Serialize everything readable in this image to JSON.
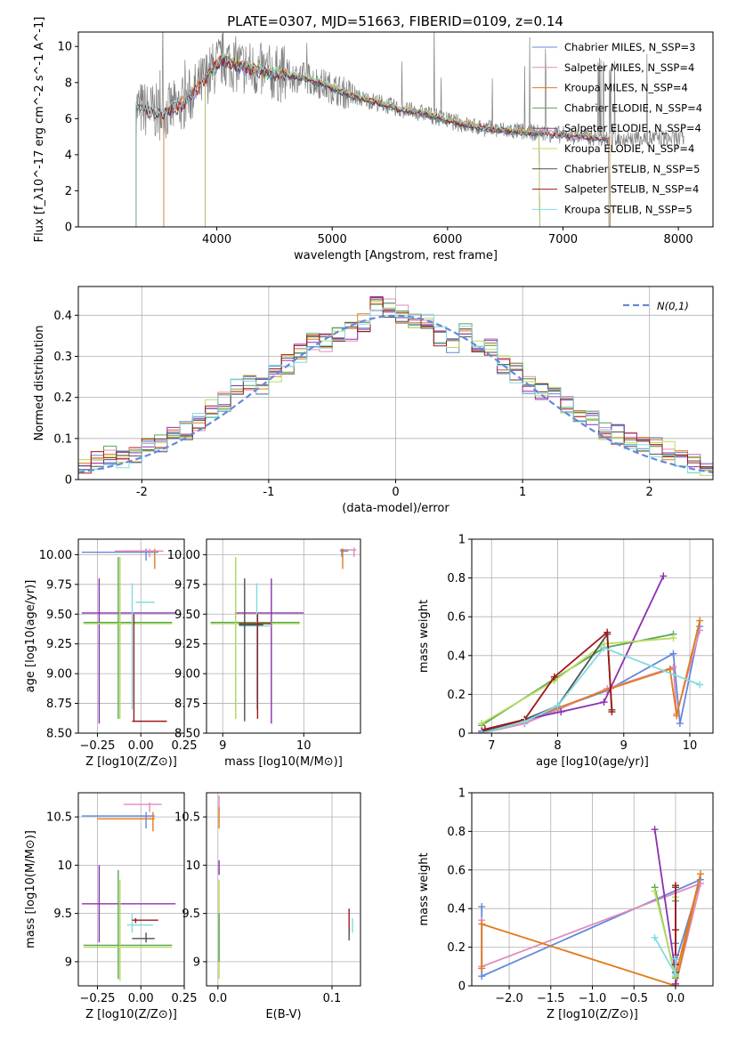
{
  "figure": {
    "title": "PLATE=0307, MJD=51663, FIBERID=0109, z=0.14"
  },
  "chart_data": [
    {
      "id": "spectrum",
      "type": "line",
      "title": "PLATE=0307, MJD=51663, FIBERID=0109, z=0.14",
      "xlabel": "wavelength [Angstrom, rest frame]",
      "ylabel": "Flux [f_λ10^-17 erg cm^-2 s^-1 A^-1]",
      "xlim": [
        2800,
        8300
      ],
      "ylim": [
        0,
        10.8
      ],
      "xticks": [
        4000,
        5000,
        6000,
        7000,
        8000
      ],
      "yticks": [
        0,
        2,
        4,
        6,
        8,
        10
      ],
      "grid": false,
      "legend_position": "right",
      "data_series": {
        "name": "",
        "color": "#808080",
        "x_range": [
          3300,
          8050
        ],
        "description": "noisy observed spectrum"
      },
      "continuum": {
        "x": [
          3300,
          3450,
          3550,
          3700,
          3850,
          3950,
          4050,
          4200,
          4400,
          4600,
          4800,
          5000,
          5200,
          5400,
          5600,
          5800,
          6000,
          6200,
          6400,
          6600,
          6800,
          7000,
          7200,
          7400
        ],
        "y": [
          6.6,
          6.4,
          6.3,
          6.8,
          7.8,
          8.6,
          9.3,
          8.9,
          8.6,
          8.4,
          8.2,
          7.7,
          7.2,
          6.9,
          6.5,
          6.3,
          5.9,
          5.6,
          5.4,
          5.3,
          5.2,
          5.1,
          5.0,
          4.9
        ]
      },
      "series": [
        {
          "name": "Chabrier MILES, N_SSP=3",
          "color": "#6488dc",
          "x_range": [
            3540,
            7410
          ]
        },
        {
          "name": "Salpeter MILES, N_SSP=4",
          "color": "#e08cbc",
          "x_range": [
            3540,
            7410
          ]
        },
        {
          "name": "Kroupa MILES, N_SSP=4",
          "color": "#e07c1c",
          "x_range": [
            3540,
            7410
          ]
        },
        {
          "name": "Chabrier ELODIE, N_SSP=4",
          "color": "#58a458",
          "x_range": [
            3900,
            6800
          ]
        },
        {
          "name": "Salpeter ELODIE, N_SSP=4",
          "color": "#8c30b0",
          "x_range": [
            3900,
            6800
          ]
        },
        {
          "name": "Kroupa ELODIE, N_SSP=4",
          "color": "#b8dc5c",
          "x_range": [
            3900,
            6800
          ]
        },
        {
          "name": "Chabrier STELIB, N_SSP=5",
          "color": "#505050",
          "x_range": [
            3300,
            7400
          ]
        },
        {
          "name": "Salpeter STELIB, N_SSP=4",
          "color": "#a01818",
          "x_range": [
            3300,
            7400
          ]
        },
        {
          "name": "Kroupa STELIB, N_SSP=5",
          "color": "#80dce0",
          "x_range": [
            3300,
            7400
          ]
        }
      ]
    },
    {
      "id": "residuals",
      "type": "line",
      "xlabel": "(data-model)/error",
      "ylabel": "Normed distribution",
      "xlim": [
        -2.5,
        2.5
      ],
      "ylim": [
        0,
        0.47
      ],
      "xticks": [
        -2,
        -1,
        0,
        1,
        2
      ],
      "yticks": [
        0.0,
        0.1,
        0.2,
        0.3,
        0.4
      ],
      "grid": true,
      "legend_position": "top-right",
      "legend": "N(0,1)",
      "bins": [
        -2.5,
        2.5,
        50
      ],
      "gaussian": {
        "name": "N(0,1)",
        "color": "#6488dc",
        "style": "dashed"
      },
      "hist_envelope_y": [
        0.03,
        0.045,
        0.06,
        0.05,
        0.06,
        0.08,
        0.09,
        0.11,
        0.12,
        0.14,
        0.17,
        0.19,
        0.22,
        0.23,
        0.23,
        0.26,
        0.28,
        0.31,
        0.34,
        0.33,
        0.35,
        0.36,
        0.38,
        0.43,
        0.42,
        0.4,
        0.38,
        0.39,
        0.35,
        0.33,
        0.36,
        0.33,
        0.32,
        0.28,
        0.26,
        0.23,
        0.21,
        0.2,
        0.18,
        0.16,
        0.15,
        0.12,
        0.11,
        0.1,
        0.09,
        0.08,
        0.07,
        0.05,
        0.04,
        0.02
      ]
    },
    {
      "id": "age_vs_Z",
      "type": "scatter",
      "xlabel": "Z [log10(Z/Z⊙)]",
      "ylabel": "age [log10(age/yr)]",
      "xlim": [
        -0.36,
        0.25
      ],
      "ylim": [
        8.5,
        10.13
      ],
      "xticks": [
        -0.25,
        0.0,
        0.25
      ],
      "xticklabels": [
        "−0.25",
        "0.00",
        "0.25"
      ],
      "yticks": [
        8.5,
        8.75,
        9.0,
        9.25,
        9.5,
        9.75,
        10.0
      ],
      "yticklabels": [
        "8.50",
        "8.75",
        "9.00",
        "9.25",
        "9.50",
        "9.75",
        "10.00"
      ],
      "grid": true,
      "crosses": [
        {
          "color": "#6488dc",
          "x": [
            -0.34,
            0.1
          ],
          "y": 10.02,
          "xc": 0.03,
          "yr": [
            9.95,
            10.05
          ]
        },
        {
          "color": "#e07c1c",
          "x": [
            -0.1,
            0.1
          ],
          "y": 10.03,
          "xc": 0.08,
          "yr": [
            9.88,
            10.05
          ]
        },
        {
          "color": "#e08cbc",
          "x": [
            -0.15,
            0.13
          ],
          "y": 10.03,
          "xc": 0.05,
          "yr": [
            9.98,
            10.05
          ]
        },
        {
          "color": "#8c30b0",
          "x": [
            -0.34,
            0.2
          ],
          "y": 9.51,
          "xc": -0.24,
          "yr": [
            8.58,
            9.8
          ]
        },
        {
          "color": "#58a458",
          "x": [
            -0.33,
            0.18
          ],
          "y": 9.43,
          "xc": -0.13,
          "yr": [
            8.62,
            9.98
          ]
        },
        {
          "color": "#b8dc5c",
          "x": [
            -0.33,
            0.18
          ],
          "y": 9.42,
          "xc": -0.12,
          "yr": [
            8.62,
            9.98
          ]
        },
        {
          "color": "#80dce0",
          "x": [
            -0.03,
            0.08
          ],
          "y": 9.6,
          "xc": -0.05,
          "yr": [
            8.7,
            9.76
          ]
        },
        {
          "color": "#a01818",
          "x": [
            -0.05,
            0.15
          ],
          "y": 8.6,
          "xc": -0.04,
          "yr": [
            8.6,
            9.5
          ]
        }
      ]
    },
    {
      "id": "age_vs_mass",
      "type": "scatter",
      "xlabel": "mass [log10(M/M⊙)]",
      "ylabel": "",
      "xlim": [
        8.8,
        10.7
      ],
      "ylim": [
        8.5,
        10.13
      ],
      "xticks": [
        9,
        10
      ],
      "yticks": [
        8.5,
        8.75,
        9.0,
        9.25,
        9.5,
        9.75,
        10.0
      ],
      "yticklabels": [
        "8.50",
        "8.75",
        "9.00",
        "9.25",
        "9.50",
        "9.75",
        "10.00"
      ],
      "grid": true,
      "crosses": [
        {
          "color": "#6488dc",
          "x": [
            10.45,
            10.55
          ],
          "y": 10.03,
          "xc": 10.47,
          "yr": [
            9.98,
            10.05
          ]
        },
        {
          "color": "#e07c1c",
          "x": [
            10.45,
            10.55
          ],
          "y": 10.04,
          "xc": 10.48,
          "yr": [
            9.88,
            10.05
          ]
        },
        {
          "color": "#e08cbc",
          "x": [
            10.5,
            10.65
          ],
          "y": 10.04,
          "xc": 10.62,
          "yr": [
            9.98,
            10.06
          ]
        },
        {
          "color": "#8c30b0",
          "x": [
            9.15,
            10.0
          ],
          "y": 9.51,
          "xc": 9.6,
          "yr": [
            8.58,
            9.8
          ]
        },
        {
          "color": "#58a458",
          "x": [
            8.85,
            9.95
          ],
          "y": 9.43,
          "xc": 9.16,
          "yr": [
            8.62,
            9.98
          ]
        },
        {
          "color": "#b8dc5c",
          "x": [
            8.85,
            9.95
          ],
          "y": 9.42,
          "xc": 9.16,
          "yr": [
            8.62,
            9.98
          ]
        },
        {
          "color": "#80dce0",
          "x": [
            9.2,
            9.6
          ],
          "y": 9.4,
          "xc": 9.42,
          "yr": [
            8.7,
            9.76
          ]
        },
        {
          "color": "#a01818",
          "x": [
            9.2,
            9.6
          ],
          "y": 9.42,
          "xc": 9.43,
          "yr": [
            8.62,
            9.5
          ]
        },
        {
          "color": "#505050",
          "x": [
            9.2,
            9.5
          ],
          "y": 9.41,
          "xc": 9.27,
          "yr": [
            8.6,
            9.8
          ]
        }
      ]
    },
    {
      "id": "weight_vs_age",
      "type": "line",
      "xlabel": "age [log10(age/yr)]",
      "ylabel": "mass weight",
      "xlim": [
        6.7,
        10.35
      ],
      "ylim": [
        0,
        1.0
      ],
      "xticks": [
        7,
        8,
        9,
        10
      ],
      "yticks": [
        0.0,
        0.2,
        0.4,
        0.6,
        0.8,
        1.0
      ],
      "grid": true,
      "series": [
        {
          "color": "#6488dc",
          "x": [
            6.85,
            7.5,
            7.95,
            8.75,
            9.75,
            9.85,
            10.15
          ],
          "y": [
            0.0,
            0.05,
            0.12,
            0.22,
            0.41,
            0.05,
            0.55
          ]
        },
        {
          "color": "#e08cbc",
          "x": [
            6.85,
            7.5,
            8.0,
            8.75,
            9.75,
            9.8,
            10.15
          ],
          "y": [
            0.0,
            0.05,
            0.12,
            0.23,
            0.34,
            0.1,
            0.53
          ]
        },
        {
          "color": "#e07c1c",
          "x": [
            6.85,
            7.5,
            8.0,
            8.8,
            9.7,
            9.8,
            10.15
          ],
          "y": [
            0.0,
            0.07,
            0.13,
            0.23,
            0.33,
            0.09,
            0.58
          ]
        },
        {
          "color": "#58a458",
          "x": [
            6.85,
            7.95,
            8.7,
            9.75
          ],
          "y": [
            0.04,
            0.28,
            0.44,
            0.51
          ]
        },
        {
          "color": "#8c30b0",
          "x": [
            6.85,
            7.5,
            8.05,
            8.7,
            9.6
          ],
          "y": [
            0.01,
            0.07,
            0.11,
            0.16,
            0.81
          ]
        },
        {
          "color": "#b8dc5c",
          "x": [
            6.85,
            7.95,
            8.7,
            9.75
          ],
          "y": [
            0.05,
            0.27,
            0.46,
            0.49
          ]
        },
        {
          "color": "#505050",
          "x": [
            6.9,
            7.5,
            8.0,
            8.75,
            8.82
          ],
          "y": [
            0.01,
            0.07,
            0.14,
            0.51,
            0.12
          ]
        },
        {
          "color": "#a01818",
          "x": [
            6.9,
            7.5,
            7.95,
            8.75,
            8.82
          ],
          "y": [
            0.02,
            0.07,
            0.29,
            0.52,
            0.11
          ]
        },
        {
          "color": "#80dce0",
          "x": [
            6.85,
            7.5,
            8.0,
            8.7,
            10.15
          ],
          "y": [
            0.0,
            0.06,
            0.14,
            0.44,
            0.25
          ]
        }
      ]
    },
    {
      "id": "mass_vs_Z",
      "type": "scatter",
      "xlabel": "Z [log10(Z/Z⊙)]",
      "ylabel": "mass [log10(M/M⊙)]",
      "xlim": [
        -0.36,
        0.25
      ],
      "ylim": [
        8.75,
        10.75
      ],
      "xticks": [
        -0.25,
        0.0,
        0.25
      ],
      "xticklabels": [
        "−0.25",
        "0.00",
        "0.25"
      ],
      "yticks": [
        9.0,
        9.5,
        10.0,
        10.5
      ],
      "grid": true,
      "crosses": [
        {
          "color": "#6488dc",
          "x": [
            -0.34,
            0.08
          ],
          "y": 10.51,
          "xc": 0.03,
          "yr": [
            10.38,
            10.55
          ]
        },
        {
          "color": "#e07c1c",
          "x": [
            -0.25,
            0.08
          ],
          "y": 10.48,
          "xc": 0.07,
          "yr": [
            10.35,
            10.55
          ]
        },
        {
          "color": "#e08cbc",
          "x": [
            -0.1,
            0.12
          ],
          "y": 10.63,
          "xc": 0.05,
          "yr": [
            10.55,
            10.65
          ]
        },
        {
          "color": "#8c30b0",
          "x": [
            -0.34,
            0.2
          ],
          "y": 9.6,
          "xc": -0.24,
          "yr": [
            9.2,
            10.0
          ]
        },
        {
          "color": "#58a458",
          "x": [
            -0.33,
            0.18
          ],
          "y": 9.17,
          "xc": -0.13,
          "yr": [
            8.82,
            9.95
          ]
        },
        {
          "color": "#b8dc5c",
          "x": [
            -0.33,
            0.18
          ],
          "y": 9.15,
          "xc": -0.12,
          "yr": [
            8.8,
            9.85
          ]
        },
        {
          "color": "#80dce0",
          "x": [
            -0.08,
            0.07
          ],
          "y": 9.38,
          "xc": -0.05,
          "yr": [
            9.3,
            9.5
          ]
        },
        {
          "color": "#a01818",
          "x": [
            -0.05,
            0.1
          ],
          "y": 9.43,
          "xc": -0.03,
          "yr": [
            9.4,
            9.45
          ]
        },
        {
          "color": "#505050",
          "x": [
            -0.05,
            0.08
          ],
          "y": 9.24,
          "xc": 0.03,
          "yr": [
            9.2,
            9.3
          ]
        }
      ]
    },
    {
      "id": "mass_vs_ebv",
      "type": "scatter",
      "xlabel": "E(B-V)",
      "ylabel": "",
      "xlim": [
        -0.01,
        0.125
      ],
      "ylim": [
        8.75,
        10.75
      ],
      "xticks": [
        0.0,
        0.1
      ],
      "xticklabels": [
        "0.0",
        "0.1"
      ],
      "yticks": [
        9.0,
        9.5,
        10.0,
        10.5
      ],
      "grid": true,
      "segments": [
        {
          "color": "#e08cbc",
          "x": 0.001,
          "yr": [
            10.55,
            10.72
          ]
        },
        {
          "color": "#e07c1c",
          "x": 0.001,
          "yr": [
            10.38,
            10.6
          ]
        },
        {
          "color": "#8c30b0",
          "x": 0.001,
          "yr": [
            9.9,
            10.05
          ]
        },
        {
          "color": "#b8dc5c",
          "x": 0.001,
          "yr": [
            8.82,
            9.85
          ]
        },
        {
          "color": "#58a458",
          "x": 0.001,
          "yr": [
            9.0,
            9.5
          ]
        },
        {
          "color": "#a01818",
          "x": 0.115,
          "yr": [
            9.3,
            9.55
          ]
        },
        {
          "color": "#505050",
          "x": 0.115,
          "yr": [
            9.22,
            9.35
          ]
        },
        {
          "color": "#80dce0",
          "x": 0.118,
          "yr": [
            9.3,
            9.45
          ]
        }
      ]
    },
    {
      "id": "weight_vs_Z",
      "type": "line",
      "xlabel": "Z [log10(Z/Z⊙)]",
      "ylabel": "mass weight",
      "xlim": [
        -2.45,
        0.45
      ],
      "ylim": [
        0,
        1.0
      ],
      "xticks": [
        -2.0,
        -1.5,
        -1.0,
        -0.5,
        0.0
      ],
      "xticklabels": [
        "−2.0",
        "−1.5",
        "−1.0",
        "−0.5",
        "0.0"
      ],
      "yticks": [
        0.0,
        0.2,
        0.4,
        0.6,
        0.8,
        1.0
      ],
      "grid": true,
      "series": [
        {
          "color": "#6488dc",
          "x": [
            -2.33,
            -2.33,
            0.3,
            0.0,
            0.0
          ],
          "y": [
            0.41,
            0.05,
            0.55,
            0.12,
            0.22
          ]
        },
        {
          "color": "#e08cbc",
          "x": [
            -2.33,
            -2.33,
            0.3,
            0.0,
            0.0
          ],
          "y": [
            0.34,
            0.1,
            0.53,
            0.0,
            0.12
          ]
        },
        {
          "color": "#e07c1c",
          "x": [
            -2.33,
            -2.33,
            0.0,
            0.3,
            0.0
          ],
          "y": [
            0.09,
            0.32,
            0.0,
            0.58,
            0.05
          ]
        },
        {
          "color": "#58a458",
          "x": [
            -0.25,
            0.0,
            0.0
          ],
          "y": [
            0.51,
            0.04,
            0.44
          ]
        },
        {
          "color": "#8c30b0",
          "x": [
            -0.25,
            0.0,
            0.0,
            0.0
          ],
          "y": [
            0.81,
            0.07,
            0.16,
            0.01
          ]
        },
        {
          "color": "#b8dc5c",
          "x": [
            -0.25,
            0.0,
            0.0
          ],
          "y": [
            0.49,
            0.05,
            0.46
          ]
        },
        {
          "color": "#505050",
          "x": [
            0.0,
            0.0,
            0.0
          ],
          "y": [
            0.51,
            0.07,
            0.14
          ]
        },
        {
          "color": "#a01818",
          "x": [
            0.0,
            0.0,
            0.0
          ],
          "y": [
            0.52,
            0.11,
            0.29
          ]
        },
        {
          "color": "#80dce0",
          "x": [
            -0.25,
            0.0,
            0.0
          ],
          "y": [
            0.25,
            0.06,
            0.14
          ]
        }
      ]
    }
  ]
}
